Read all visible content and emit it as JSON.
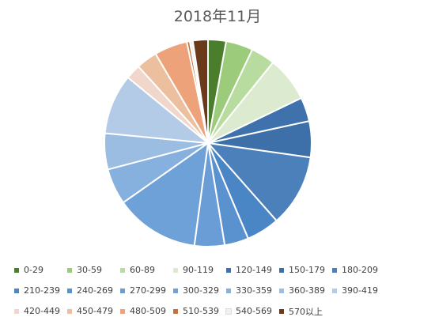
{
  "chart_data": {
    "type": "pie",
    "title": "2018年11月",
    "categories": [
      "0-29",
      "30-59",
      "60-89",
      "90-119",
      "120-149",
      "150-179",
      "180-209",
      "210-239",
      "240-269",
      "270-299",
      "300-329",
      "330-359",
      "360-389",
      "390-419",
      "420-449",
      "450-479",
      "480-509",
      "510-539",
      "540-569",
      "570以上"
    ],
    "values": [
      3.0,
      4.5,
      4.0,
      7.5,
      4.0,
      6.0,
      12.0,
      5.5,
      4.0,
      5.0,
      14.0,
      6.0,
      6.0,
      10.0,
      2.5,
      3.5,
      5.5,
      0.5,
      0.5,
      2.5
    ],
    "colors": [
      "#4a7d2c",
      "#9ccb7b",
      "#b8dc9f",
      "#dcebd0",
      "#3f72ad",
      "#3d6fa8",
      "#4b80bb",
      "#4a86c5",
      "#5a92cf",
      "#6a9cd5",
      "#6da1d8",
      "#86b0dd",
      "#9cbde2",
      "#b3cbe6",
      "#f1d7cb",
      "#ecbf9f",
      "#eda27a",
      "#c4733b",
      "#f0f0f0",
      "#6a3a1b"
    ],
    "legend": "bottom"
  }
}
